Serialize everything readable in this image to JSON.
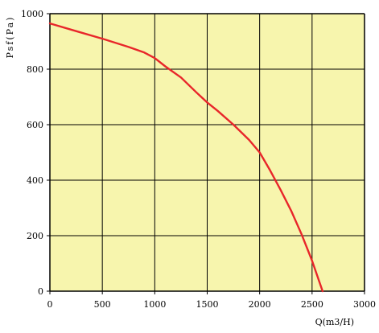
{
  "chart_data": {
    "type": "line",
    "title": "",
    "xlabel": "Q(m3/H)",
    "ylabel": "Psf(Pa)",
    "xlim": [
      0,
      3000
    ],
    "ylim": [
      0,
      1000
    ],
    "x_ticks": [
      0,
      500,
      1000,
      1500,
      2000,
      2500,
      3000
    ],
    "y_ticks": [
      0,
      200,
      400,
      600,
      800,
      1000
    ],
    "grid": true,
    "legend": "none",
    "colors": {
      "plot_background": "#f7f5ad",
      "grid": "#000000",
      "curve": "#e8262a"
    },
    "series": [
      {
        "x": [
          0,
          250,
          500,
          750,
          900,
          1000,
          1100,
          1250,
          1400,
          1500,
          1600,
          1750,
          1900,
          2000,
          2100,
          2200,
          2300,
          2400,
          2500,
          2600
        ],
        "y": [
          965,
          937,
          910,
          880,
          860,
          840,
          810,
          770,
          715,
          680,
          650,
          600,
          545,
          500,
          435,
          365,
          290,
          205,
          110,
          0
        ]
      }
    ]
  }
}
